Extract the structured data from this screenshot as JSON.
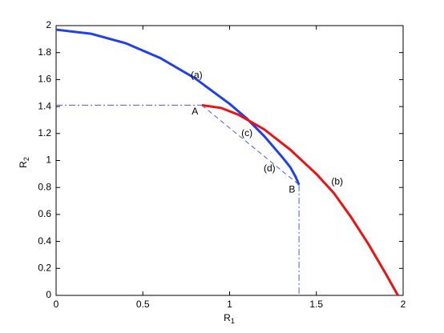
{
  "chart_data": {
    "type": "line",
    "xlabel": {
      "main": "R",
      "sub": "1"
    },
    "ylabel": {
      "main": "R",
      "sub": "2"
    },
    "xlim": [
      0,
      2
    ],
    "ylim": [
      0,
      2
    ],
    "xticks": [
      0,
      0.5,
      1,
      1.5,
      2
    ],
    "yticks": [
      0,
      0.2,
      0.4,
      0.6,
      0.8,
      1,
      1.2,
      1.4,
      1.6,
      1.8,
      2
    ],
    "grid": false,
    "series": [
      {
        "color": "#1f3ff0",
        "style": "solid",
        "width": 3,
        "x": [
          0,
          0.2,
          0.4,
          0.6,
          0.8,
          1.0,
          1.1,
          1.2,
          1.3,
          1.35,
          1.38,
          1.4
        ],
        "y": [
          1.97,
          1.94,
          1.87,
          1.76,
          1.61,
          1.42,
          1.31,
          1.18,
          1.03,
          0.95,
          0.88,
          0.82
        ]
      },
      {
        "color": "#ee1111",
        "style": "solid",
        "width": 3,
        "x": [
          0.84,
          0.95,
          1.05,
          1.2,
          1.35,
          1.5,
          1.6,
          1.7,
          1.8,
          1.9,
          1.97
        ],
        "y": [
          1.41,
          1.39,
          1.34,
          1.23,
          1.08,
          0.9,
          0.76,
          0.58,
          0.38,
          0.16,
          0
        ]
      },
      {
        "color": "#4a5ee0",
        "style": "dashdot",
        "width": 1,
        "x": [
          0,
          0.84
        ],
        "y": [
          1.41,
          1.41
        ]
      },
      {
        "color": "#4a5ee0",
        "style": "dashdot",
        "width": 1,
        "x": [
          1.4,
          1.4
        ],
        "y": [
          0.82,
          0
        ]
      },
      {
        "color": "#4a5ee0",
        "style": "dashed",
        "width": 1,
        "x": [
          0.84,
          1.4
        ],
        "y": [
          1.41,
          0.82
        ]
      }
    ],
    "annotations": [
      {
        "text": "(a)",
        "x": 0.81,
        "y": 1.63
      },
      {
        "text": "(b)",
        "x": 1.62,
        "y": 0.84
      },
      {
        "text": "(c)",
        "x": 1.1,
        "y": 1.2
      },
      {
        "text": "(d)",
        "x": 1.23,
        "y": 0.94
      },
      {
        "text": "A",
        "x": 0.8,
        "y": 1.36
      },
      {
        "text": "B",
        "x": 1.36,
        "y": 0.78
      }
    ]
  }
}
